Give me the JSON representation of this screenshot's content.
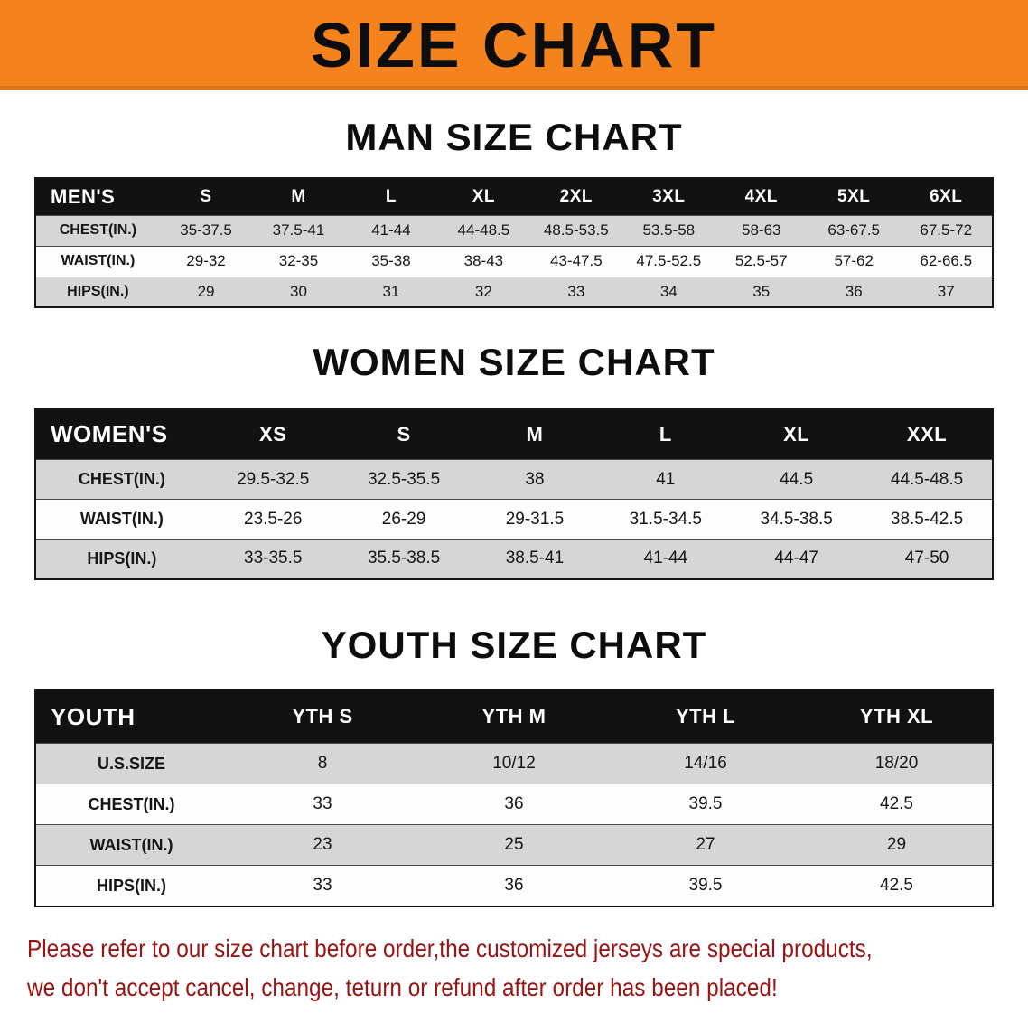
{
  "banner": {
    "title": "SIZE CHART"
  },
  "sections": [
    {
      "key": "men",
      "heading": "MAN SIZE CHART",
      "table": {
        "header": [
          "MEN'S",
          "S",
          "M",
          "L",
          "XL",
          "2XL",
          "3XL",
          "4XL",
          "5XL",
          "6XL"
        ],
        "rows": [
          {
            "label": "CHEST(IN.)",
            "values": [
              "35-37.5",
              "37.5-41",
              "41-44",
              "44-48.5",
              "48.5-53.5",
              "53.5-58",
              "58-63",
              "63-67.5",
              "67.5-72"
            ]
          },
          {
            "label": "WAIST(IN.)",
            "values": [
              "29-32",
              "32-35",
              "35-38",
              "38-43",
              "43-47.5",
              "47.5-52.5",
              "52.5-57",
              "57-62",
              "62-66.5"
            ]
          },
          {
            "label": "HIPS(IN.)",
            "values": [
              "29",
              "30",
              "31",
              "32",
              "33",
              "34",
              "35",
              "36",
              "37"
            ]
          }
        ]
      }
    },
    {
      "key": "women",
      "heading": "WOMEN SIZE CHART",
      "table": {
        "header": [
          "WOMEN'S",
          "XS",
          "S",
          "M",
          "L",
          "XL",
          "XXL"
        ],
        "rows": [
          {
            "label": "CHEST(IN.)",
            "values": [
              "29.5-32.5",
              "32.5-35.5",
              "38",
              "41",
              "44.5",
              "44.5-48.5"
            ]
          },
          {
            "label": "WAIST(IN.)",
            "values": [
              "23.5-26",
              "26-29",
              "29-31.5",
              "31.5-34.5",
              "34.5-38.5",
              "38.5-42.5"
            ]
          },
          {
            "label": "HIPS(IN.)",
            "values": [
              "33-35.5",
              "35.5-38.5",
              "38.5-41",
              "41-44",
              "44-47",
              "47-50"
            ]
          }
        ]
      }
    },
    {
      "key": "youth",
      "heading": "YOUTH SIZE CHART",
      "table": {
        "header": [
          "YOUTH",
          "YTH S",
          "YTH M",
          "YTH L",
          "YTH XL"
        ],
        "rows": [
          {
            "label": "U.S.SIZE",
            "values": [
              "8",
              "10/12",
              "14/16",
              "18/20"
            ]
          },
          {
            "label": "CHEST(IN.)",
            "values": [
              "33",
              "36",
              "39.5",
              "42.5"
            ]
          },
          {
            "label": "WAIST(IN.)",
            "values": [
              "23",
              "25",
              "27",
              "29"
            ]
          },
          {
            "label": "HIPS(IN.)",
            "values": [
              "33",
              "36",
              "39.5",
              "42.5"
            ]
          }
        ]
      }
    }
  ],
  "disclaimer": {
    "line1": "Please refer to our size chart before order,the customized jerseys are special products,",
    "line2": "we don't accept cancel, change, teturn or refund after order has been placed!"
  },
  "colors": {
    "banner_bg": "#f5831d",
    "table_header_bg": "#121212",
    "row_alt_bg": "#d6d6d6",
    "disclaimer_color": "#9b1414"
  }
}
